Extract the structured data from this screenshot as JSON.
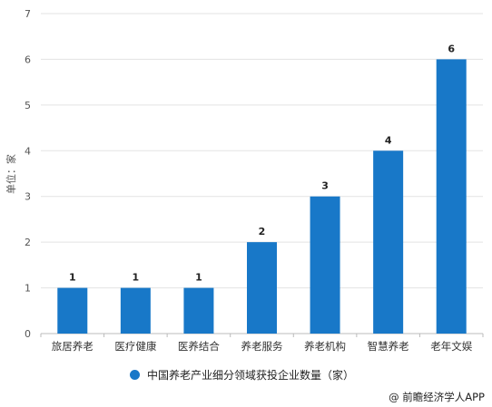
{
  "chart_data": {
    "type": "bar",
    "categories": [
      "旅居养老",
      "医疗健康",
      "医养结合",
      "养老服务",
      "养老机构",
      "智慧养老",
      "老年文娱"
    ],
    "series": [
      {
        "name": "中国养老产业细分领域获投企业数量（家）",
        "values": [
          1,
          1,
          1,
          2,
          3,
          4,
          6
        ]
      }
    ],
    "ylabel": "单位：家",
    "ylim": [
      0,
      7
    ],
    "yticks": [
      0,
      1,
      2,
      3,
      4,
      5,
      6,
      7
    ],
    "grid": true,
    "legend_position": "bottom",
    "bar_color": "#1878c8"
  },
  "legend": {
    "label": "中国养老产业细分领域获投企业数量（家）"
  },
  "source": "@ 前瞻经济学人APP"
}
